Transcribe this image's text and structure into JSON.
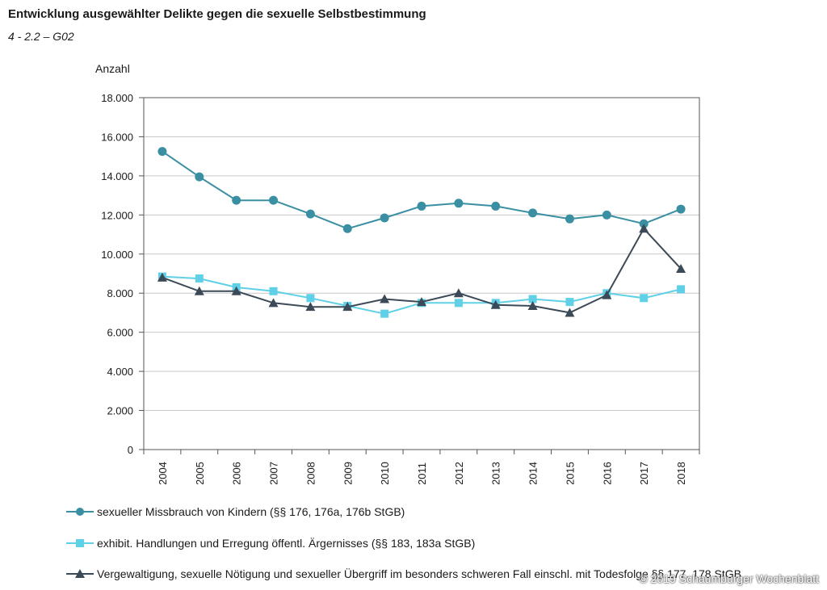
{
  "header": {
    "title": "Entwicklung ausgewählter Delikte gegen die sexuelle Selbstbestimmung",
    "subtitle": "4 - 2.2 – G02"
  },
  "watermark": "© 2019 Schaumburger Wochenblatt",
  "colors": {
    "series1": "#3a8fa3",
    "series2": "#5fd0e6",
    "series3": "#3c4a57",
    "grid": "#c9c9c9",
    "axis": "#555555"
  },
  "chart_data": {
    "type": "line",
    "title": "Entwicklung ausgewählter Delikte gegen die sexuelle Selbstbestimmung",
    "xlabel": "",
    "ylabel": "Anzahl",
    "ylim": [
      0,
      18000
    ],
    "yticks": [
      0,
      2000,
      4000,
      6000,
      8000,
      10000,
      12000,
      14000,
      16000,
      18000
    ],
    "ytick_labels": [
      "0",
      "2.000",
      "4.000",
      "6.000",
      "8.000",
      "10.000",
      "12.000",
      "14.000",
      "16.000",
      "18.000"
    ],
    "grid": "horizontal",
    "legend_position": "bottom",
    "categories": [
      "2004",
      "2005",
      "2006",
      "2007",
      "2008",
      "2009",
      "2010",
      "2011",
      "2012",
      "2013",
      "2014",
      "2015",
      "2016",
      "2017",
      "2018"
    ],
    "series": [
      {
        "name": "sexueller Missbrauch von Kindern (§§ 176, 176a, 176b StGB)",
        "marker": "circle",
        "values": [
          15250,
          13950,
          12750,
          12750,
          12050,
          11300,
          11850,
          12450,
          12600,
          12450,
          12100,
          11800,
          12000,
          11550,
          12300
        ]
      },
      {
        "name": "exhibit. Handlungen und Erregung öffentl. Ärgernisses (§§ 183, 183a StGB)",
        "marker": "square",
        "values": [
          8850,
          8750,
          8300,
          8100,
          7750,
          7350,
          6950,
          7500,
          7500,
          7500,
          7700,
          7550,
          8000,
          7750,
          8200
        ]
      },
      {
        "name": "Vergewaltigung, sexuelle Nötigung und sexueller Übergriff im besonders schweren Fall einschl. mit Todesfolge §§ 177, 178 StGB",
        "marker": "triangle",
        "values": [
          8800,
          8100,
          8100,
          7500,
          7300,
          7300,
          7700,
          7550,
          8000,
          7400,
          7350,
          7000,
          7900,
          11300,
          9250
        ]
      }
    ]
  }
}
